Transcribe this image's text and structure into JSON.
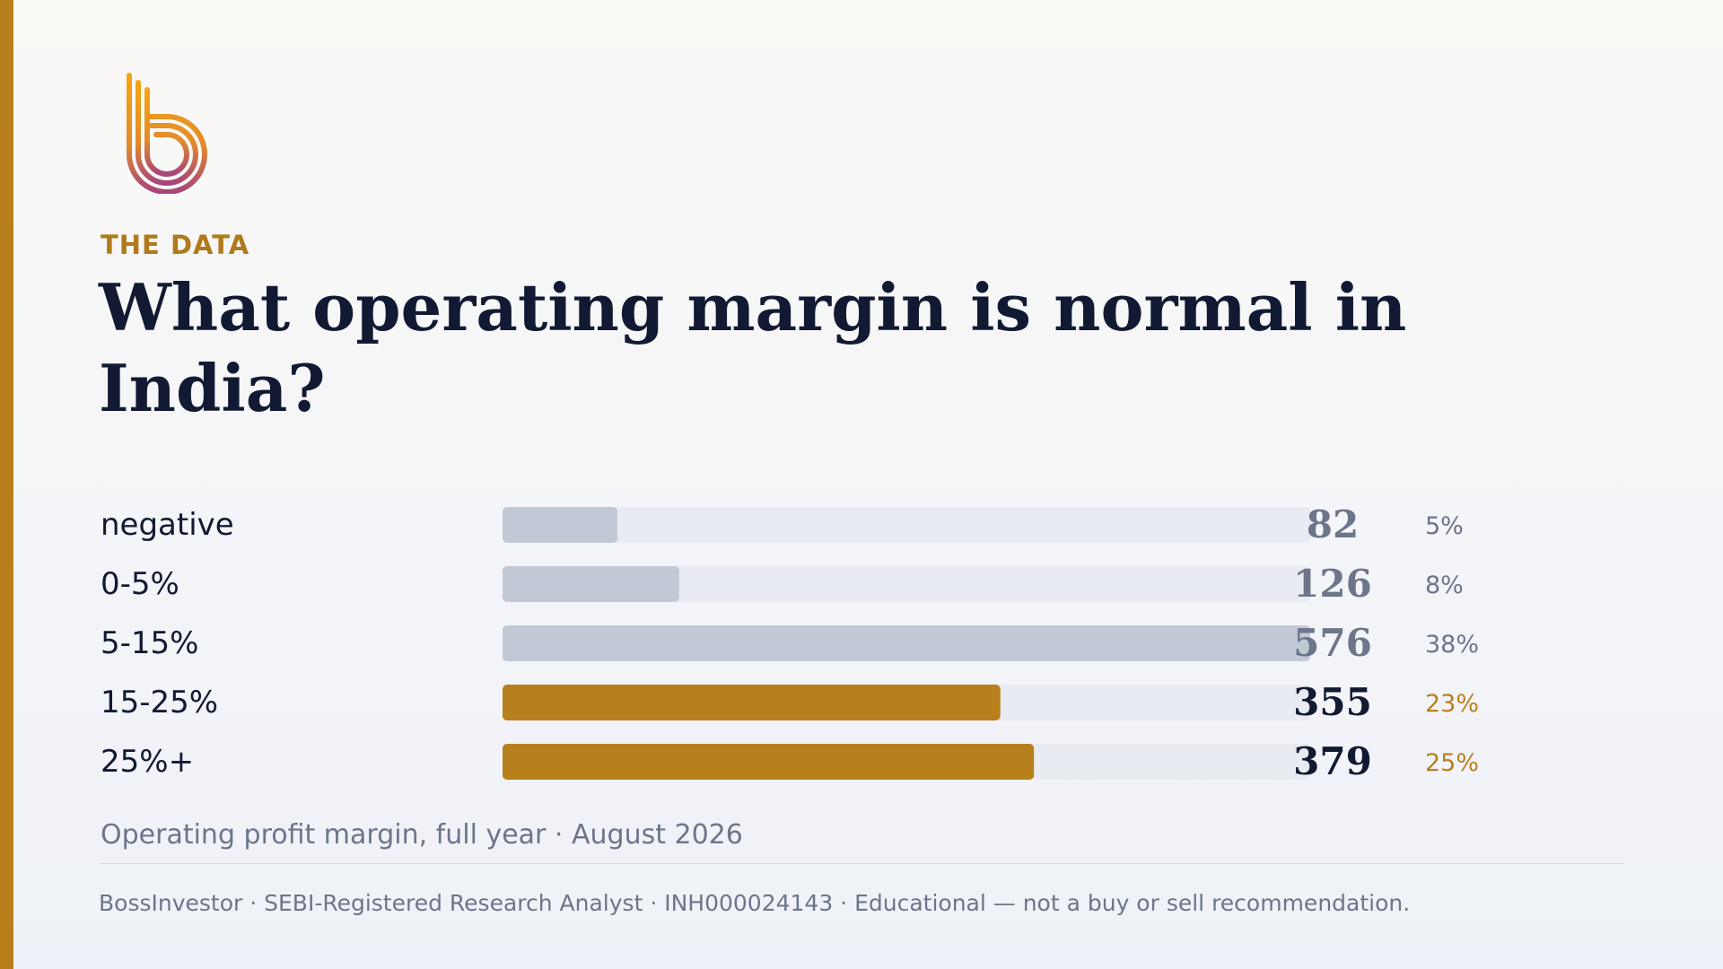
{
  "eyebrow": "THE DATA",
  "title": "What operating margin is normal in India?",
  "caption": "Operating profit margin, full year · August 2026",
  "footer": "BossInvestor  ·  SEBI-Registered Research Analyst  ·  INH000024143  ·  Educational — not a buy or sell recommendation.",
  "logo": {
    "icon": "stylized-b-logo-icon"
  },
  "colors": {
    "accent": "#b8801d",
    "bar_muted": "#c2c9d6",
    "track": "#e8ebf1",
    "title": "#121a33",
    "label": "#121a33",
    "value_muted": "#6c7589"
  },
  "chart_data": {
    "type": "bar",
    "orientation": "horizontal",
    "categories": [
      "negative",
      "0-5%",
      "5-15%",
      "15-25%",
      "25%+"
    ],
    "values": [
      82,
      126,
      576,
      355,
      379
    ],
    "percent_labels": [
      "5%",
      "8%",
      "38%",
      "23%",
      "25%"
    ],
    "highlighted": [
      false,
      false,
      false,
      true,
      true
    ],
    "xlim": [
      0,
      576
    ],
    "grid": false,
    "legend": "none"
  }
}
